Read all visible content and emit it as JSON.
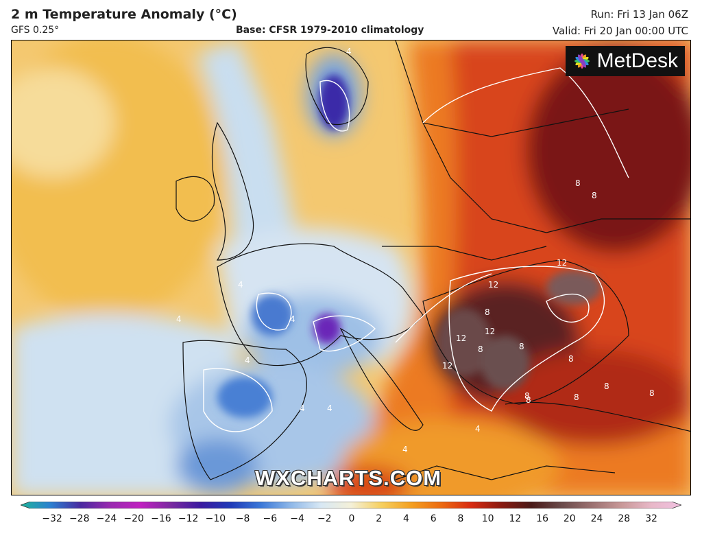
{
  "header": {
    "title": "2 m Temperature Anomaly (°C)",
    "model": "GFS 0.25°",
    "base": "Base: CFSR 1979-2010 climatology",
    "run": "Run: Fri 13 Jan 06Z",
    "valid": "Valid: Fri 20 Jan 00:00 UTC"
  },
  "logo": {
    "text": "MetDesk",
    "icon": "metdesk-flower-icon"
  },
  "watermark": "WXCHARTS.COM",
  "legend": {
    "ticks": [
      "−32",
      "−28",
      "−24",
      "−20",
      "−16",
      "−12",
      "−10",
      "−8",
      "−6",
      "−4",
      "−2",
      "0",
      "2",
      "4",
      "6",
      "8",
      "10",
      "12",
      "16",
      "20",
      "24",
      "28",
      "32"
    ],
    "colors": [
      "#1fb39b",
      "#2a7fd0",
      "#4a2aa0",
      "#9a2ab0",
      "#c020c0",
      "#7a2aa0",
      "#3a1aa0",
      "#1e3ab8",
      "#3a78d8",
      "#8fb8e8",
      "#d8e8f4",
      "#f4f0d8",
      "#f6d060",
      "#f4a020",
      "#ec6a10",
      "#d82a10",
      "#8a1a10",
      "#4a1a18",
      "#6a4a4a",
      "#9a7070",
      "#c89898",
      "#e8b8c8",
      "#f0c0e0"
    ]
  },
  "contour_labels": [
    "4",
    "4",
    "4",
    "4",
    "4",
    "8",
    "8",
    "8",
    "8",
    "8",
    "12",
    "12",
    "12",
    "12",
    "8",
    "4",
    "4",
    "4",
    "8",
    "8",
    "8",
    "8",
    "8",
    "12",
    "4"
  ]
}
